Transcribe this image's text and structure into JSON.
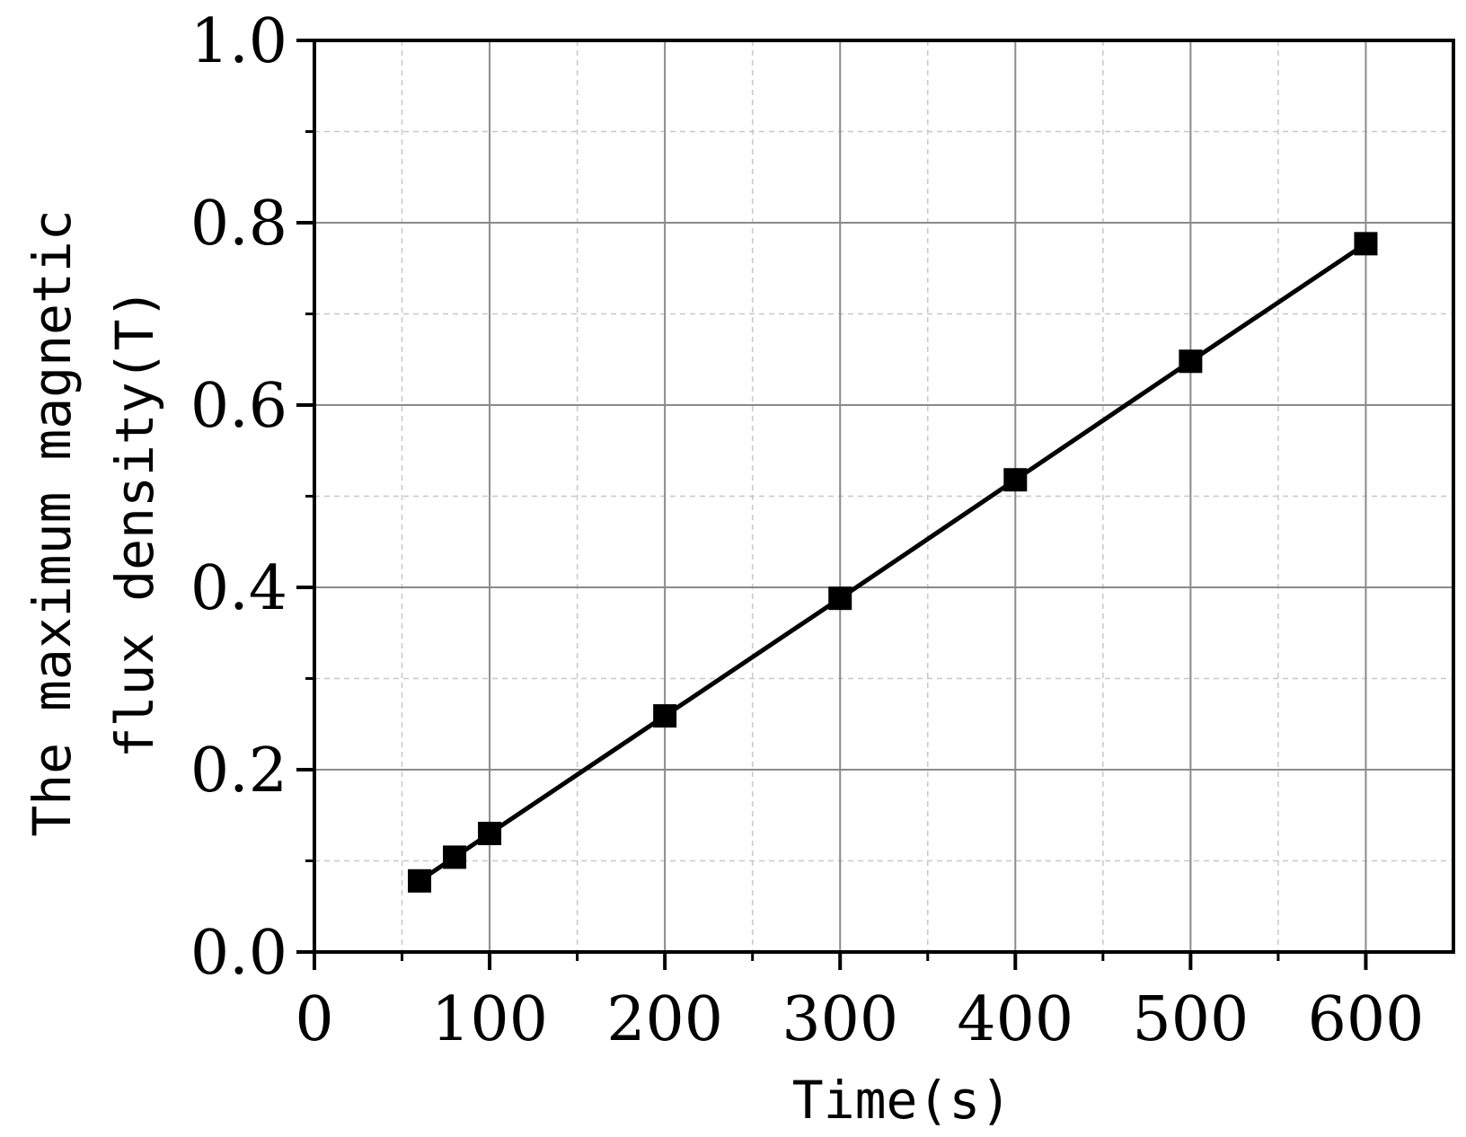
{
  "chart_data": {
    "type": "line",
    "title": "",
    "xlabel": "Time(s)",
    "ylabel_lines": [
      "The maximum magnetic",
      "flux density(T)"
    ],
    "xlim": [
      0,
      650
    ],
    "ylim": [
      0,
      1.0
    ],
    "x_ticks": [
      0,
      100,
      200,
      300,
      400,
      500,
      600
    ],
    "x_tick_labels": [
      "0",
      "100",
      "200",
      "300",
      "400",
      "500",
      "600"
    ],
    "y_ticks": [
      0,
      0.2,
      0.4,
      0.6,
      0.8,
      1.0
    ],
    "y_tick_labels": [
      "0.0",
      "0.2",
      "0.4",
      "0.6",
      "0.8",
      "1.0"
    ],
    "x_minor_step": 50,
    "y_minor_step": 0.1,
    "grid": true,
    "series": [
      {
        "x": [
          60,
          80,
          100,
          200,
          300,
          400,
          500,
          600
        ],
        "y": [
          0.078,
          0.104,
          0.13,
          0.259,
          0.388,
          0.518,
          0.648,
          0.777
        ],
        "color": "#000000",
        "marker": "square"
      }
    ]
  }
}
